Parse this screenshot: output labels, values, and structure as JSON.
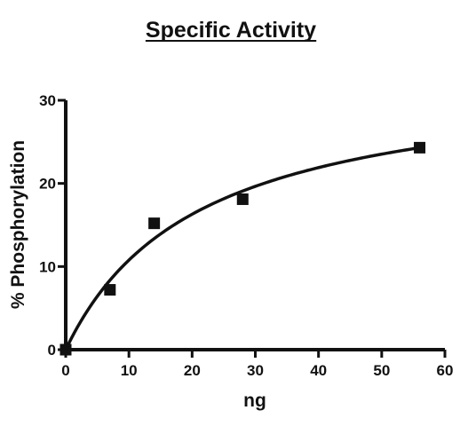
{
  "chart_data": {
    "type": "scatter",
    "title": "Specific Activity",
    "xlabel": "ng",
    "ylabel": "% Phosphorylation",
    "xlim": [
      0,
      60
    ],
    "ylim": [
      0,
      30
    ],
    "x_ticks": [
      0,
      10,
      20,
      30,
      40,
      50,
      60
    ],
    "y_ticks": [
      0,
      10,
      20,
      30
    ],
    "grid": false,
    "series": [
      {
        "marker": "square",
        "color": "#111111",
        "points": [
          {
            "x": 0,
            "y": 0
          },
          {
            "x": 7,
            "y": 7.2
          },
          {
            "x": 14,
            "y": 15.2
          },
          {
            "x": 28,
            "y": 18.1
          },
          {
            "x": 56,
            "y": 24.3
          }
        ]
      }
    ],
    "fit_curve": {
      "model": "hyperbolic",
      "vmax": 33.4,
      "k": 21.0,
      "color": "#111111"
    }
  }
}
